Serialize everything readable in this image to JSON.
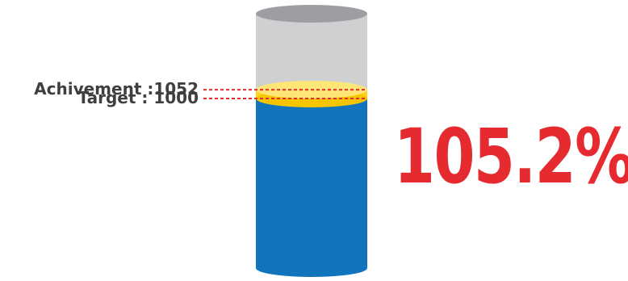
{
  "chart_data": {
    "type": "gauge",
    "achievement_label": "Achivement :1052",
    "target_label": "Target : 1000",
    "percent_label": "105.2%",
    "achievement": 1052,
    "target": 1000,
    "scale_max": 1500,
    "colors": {
      "empty": "#cfd0d2",
      "empty_top": "#9d9ea1",
      "target_fill": "#1174bd",
      "excess_fill": "#fed41b",
      "excess_top": "#fde675",
      "target_top": "#f5c600",
      "leader_line": "#e52b2f",
      "percent": "#e52b2f"
    }
  }
}
